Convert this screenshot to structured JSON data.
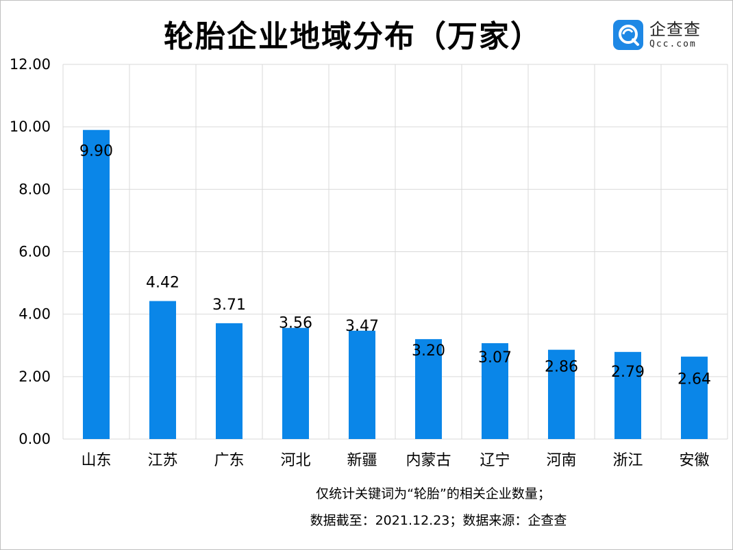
{
  "title": "轮胎企业地域分布（万家）",
  "logo": {
    "name": "企查查",
    "domain": "Qcc.com",
    "icon": "qcc-logo-icon"
  },
  "chart_data": {
    "type": "bar",
    "title": "轮胎企业地域分布（万家）",
    "categories": [
      "山东",
      "江苏",
      "广东",
      "河北",
      "新疆",
      "内蒙古",
      "辽宁",
      "河南",
      "浙江",
      "安徽"
    ],
    "values": [
      9.9,
      4.42,
      3.71,
      3.56,
      3.47,
      3.2,
      3.07,
      2.86,
      2.79,
      2.64
    ],
    "value_labels": [
      "9.90",
      "4.42",
      "3.71",
      "3.56",
      "3.47",
      "3.20",
      "3.07",
      "2.86",
      "2.79",
      "2.64"
    ],
    "y_ticks": [
      "0.00",
      "2.00",
      "4.00",
      "6.00",
      "8.00",
      "10.00",
      "12.00"
    ],
    "ylim": [
      0,
      12
    ],
    "grid": true,
    "xlabel": "",
    "ylabel": "",
    "bar_color": "#0a86e8"
  },
  "footnotes": {
    "line1": "仅统计关键词为“轮胎”的相关企业数量；",
    "line2": "数据截至：2021.12.23；数据来源：企查查"
  }
}
